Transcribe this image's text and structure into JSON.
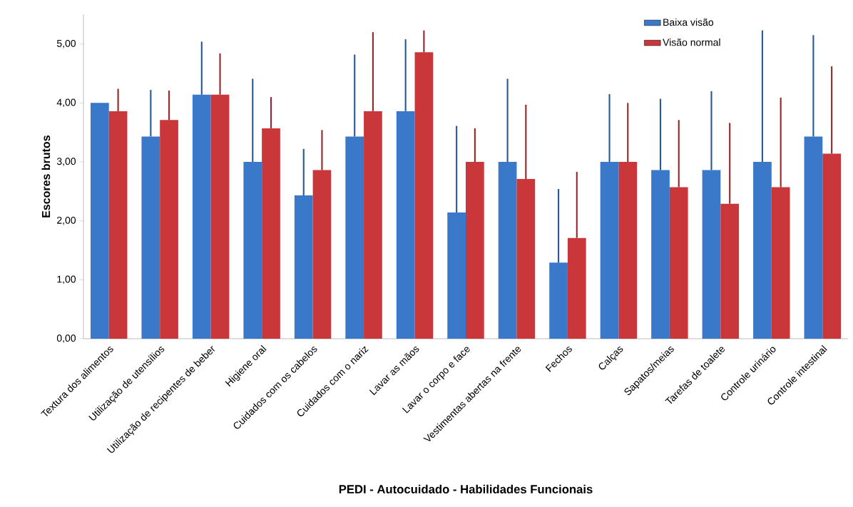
{
  "chart_data": {
    "type": "bar",
    "xlabel": "PEDI - Autocuidado  - Habilidades  Funcionais",
    "ylabel": "Escores brutos",
    "categories": [
      "Textura dos alimentos",
      "Utilização de utensílios",
      "Utilização de recipentes de beber",
      "Higiene oral",
      "Cuidados com os cabelos",
      "Cuidados com o nariz",
      "Lavar as mãos",
      "Lavar o corpo e face",
      "Vestimentas abertas na frente",
      "Fechos",
      "Calças",
      "Sapatos/meias",
      "Tarefas de toalete",
      "Controle urinário",
      "Controle intestinal"
    ],
    "series": [
      {
        "name": "Baixa visão",
        "color": "#3a78c9",
        "values": [
          4.0,
          3.43,
          4.14,
          3.0,
          2.43,
          3.43,
          3.86,
          2.14,
          3.0,
          1.29,
          3.0,
          2.86,
          2.86,
          3.0,
          3.43
        ],
        "errors": [
          null,
          [
            3.43,
            4.22
          ],
          [
            4.14,
            5.04
          ],
          [
            3.0,
            4.41
          ],
          [
            2.43,
            3.22
          ],
          [
            3.43,
            4.82
          ],
          [
            3.86,
            5.08
          ],
          [
            2.14,
            3.61
          ],
          [
            3.0,
            4.41
          ],
          [
            1.29,
            2.54
          ],
          [
            3.0,
            4.15
          ],
          [
            2.86,
            4.07
          ],
          [
            2.86,
            4.2
          ],
          [
            3.0,
            5.23
          ],
          [
            3.43,
            5.15
          ]
        ]
      },
      {
        "name": "Visão normal",
        "color": "#c9373a",
        "values": [
          3.86,
          3.71,
          4.14,
          3.57,
          2.86,
          3.86,
          4.86,
          3.0,
          2.71,
          1.71,
          3.0,
          2.57,
          2.29,
          2.57,
          3.14
        ],
        "errors": [
          [
            3.86,
            4.24
          ],
          [
            3.71,
            4.21
          ],
          [
            4.14,
            4.84
          ],
          [
            3.57,
            4.1
          ],
          [
            2.86,
            3.54
          ],
          [
            3.86,
            5.2
          ],
          [
            4.86,
            5.23
          ],
          [
            3.0,
            3.57
          ],
          [
            2.71,
            3.97
          ],
          [
            1.71,
            2.83
          ],
          [
            3.0,
            4.0
          ],
          [
            2.57,
            3.71
          ],
          [
            2.29,
            3.66
          ],
          [
            2.57,
            4.09
          ],
          [
            3.14,
            4.62
          ]
        ]
      }
    ],
    "ylim": [
      0,
      5.5
    ],
    "yticks": [
      {
        "value": 0,
        "label": "0,00"
      },
      {
        "value": 1,
        "label": "1,00"
      },
      {
        "value": 2,
        "label": "2,00"
      },
      {
        "value": 3,
        "label": "3,00"
      },
      {
        "value": 4,
        "label": "4,00"
      },
      {
        "value": 5,
        "label": "5,00"
      }
    ],
    "grid": false,
    "legend": "top right"
  }
}
